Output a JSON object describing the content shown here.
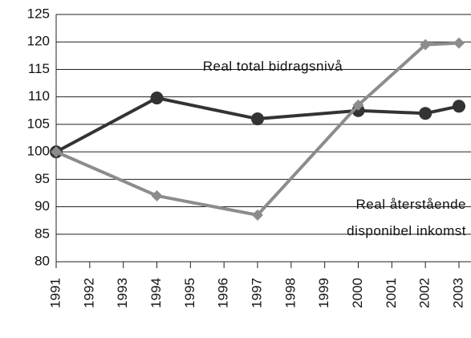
{
  "chart_data": {
    "type": "line",
    "x": [
      1991,
      1994,
      1997,
      2000,
      2002,
      2003
    ],
    "xlim": [
      1991,
      2003
    ],
    "xticks": [
      1991,
      1992,
      1993,
      1994,
      1995,
      1996,
      1997,
      1998,
      1999,
      2000,
      2001,
      2002,
      2003
    ],
    "ylim": [
      80,
      125
    ],
    "yticks": [
      80,
      85,
      90,
      95,
      100,
      105,
      110,
      115,
      120,
      125
    ],
    "grid": true,
    "series": [
      {
        "name": "Real total bidragsnivå",
        "color": "#333333",
        "marker": "circle",
        "values": [
          100,
          109.8,
          106,
          107.5,
          107,
          108.3
        ]
      },
      {
        "name": "Real återstående disponibel inkomst",
        "color": "#8c8c8c",
        "marker": "diamond",
        "values": [
          100,
          92,
          88.5,
          108.5,
          119.5,
          119.8
        ]
      }
    ]
  }
}
